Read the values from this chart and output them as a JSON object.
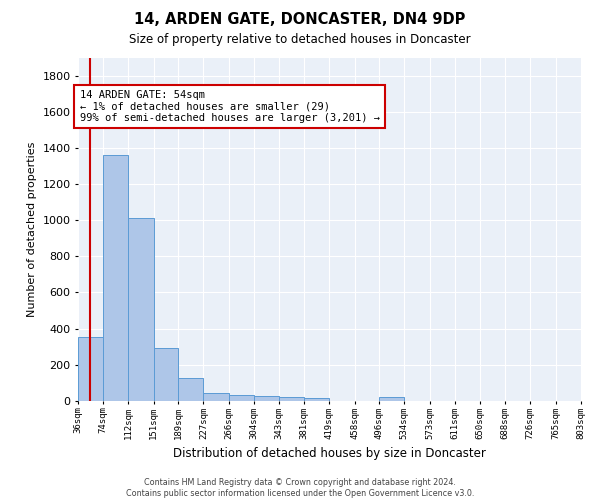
{
  "title1": "14, ARDEN GATE, DONCASTER, DN4 9DP",
  "title2": "Size of property relative to detached houses in Doncaster",
  "xlabel": "Distribution of detached houses by size in Doncaster",
  "ylabel": "Number of detached properties",
  "footer1": "Contains HM Land Registry data © Crown copyright and database right 2024.",
  "footer2": "Contains public sector information licensed under the Open Government Licence v3.0.",
  "annotation_line1": "14 ARDEN GATE: 54sqm",
  "annotation_line2": "← 1% of detached houses are smaller (29)",
  "annotation_line3": "99% of semi-detached houses are larger (3,201) →",
  "property_size": 54,
  "bar_edges": [
    36,
    74,
    112,
    151,
    189,
    227,
    266,
    304,
    343,
    381,
    419,
    458,
    496,
    534,
    573,
    611,
    650,
    688,
    726,
    765,
    803
  ],
  "bar_heights": [
    355,
    1360,
    1010,
    290,
    125,
    42,
    35,
    25,
    20,
    15,
    0,
    0,
    20,
    0,
    0,
    0,
    0,
    0,
    0,
    0
  ],
  "bar_color": "#aec6e8",
  "bar_edge_color": "#5b9bd5",
  "vline_color": "#cc0000",
  "annotation_box_color": "#cc0000",
  "background_color": "#eaf0f8",
  "ylim": [
    0,
    1900
  ],
  "yticks": [
    0,
    200,
    400,
    600,
    800,
    1000,
    1200,
    1400,
    1600,
    1800
  ]
}
